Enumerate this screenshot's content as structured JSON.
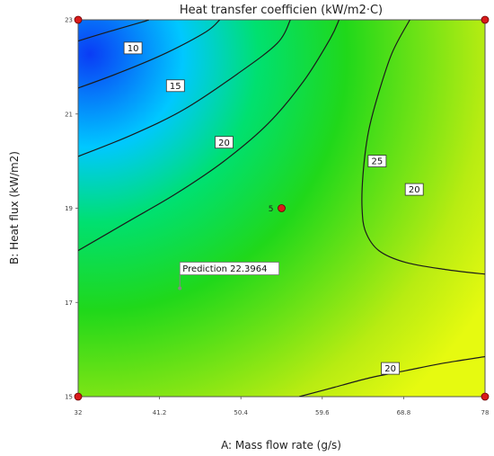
{
  "chart_data": {
    "type": "heatmap",
    "title": "Heat transfer coefficien (kW/m2·C)",
    "xlabel": "A: Mass flow rate (g/s)",
    "ylabel": "B: Heat flux  (kW/m2)",
    "xlim": [
      32,
      78
    ],
    "ylim": [
      15,
      23
    ],
    "x_ticks": [
      "32",
      "41.2",
      "50.4",
      "59.6",
      "68.8",
      "78"
    ],
    "y_ticks": [
      "15",
      "17",
      "19",
      "21",
      "23"
    ],
    "colormap": [
      "#0a3cf5",
      "#00c8ff",
      "#00e070",
      "#20d81a",
      "#b8ec12",
      "#e6fa10"
    ],
    "contours": [
      {
        "label": "10",
        "label_at": [
          38.2,
          22.4
        ],
        "points": [
          [
            32,
            22.55
          ],
          [
            35.5,
            22.75
          ],
          [
            39.2,
            22.95
          ],
          [
            40.0,
            23.0
          ]
        ]
      },
      {
        "label": "15",
        "label_at": [
          43.0,
          21.6
        ],
        "points": [
          [
            32,
            21.55
          ],
          [
            37.0,
            21.9
          ],
          [
            42.0,
            22.3
          ],
          [
            46.5,
            22.75
          ],
          [
            48.0,
            23.0
          ]
        ]
      },
      {
        "label": "20",
        "label_at": [
          48.5,
          20.4
        ],
        "points": [
          [
            32,
            20.1
          ],
          [
            38.0,
            20.55
          ],
          [
            44.0,
            21.1
          ],
          [
            50.0,
            21.85
          ],
          [
            54.5,
            22.5
          ],
          [
            56.0,
            23.0
          ]
        ]
      },
      {
        "label": "20",
        "label_at": [
          70.0,
          19.4
        ],
        "points": [
          [
            32,
            18.1
          ],
          [
            37.5,
            18.7
          ],
          [
            43.0,
            19.3
          ],
          [
            48.5,
            20.0
          ],
          [
            53.5,
            20.8
          ],
          [
            57.5,
            21.7
          ],
          [
            60.5,
            22.6
          ],
          [
            61.5,
            23.0
          ]
        ]
      },
      {
        "label": "25",
        "label_at": [
          65.8,
          20.0
        ],
        "points": [
          [
            69.5,
            23.0
          ],
          [
            67.5,
            22.3
          ],
          [
            65.9,
            21.4
          ],
          [
            64.8,
            20.6
          ],
          [
            64.2,
            19.7
          ],
          [
            64.1,
            19.0
          ],
          [
            64.5,
            18.5
          ],
          [
            66.0,
            18.1
          ],
          [
            69.0,
            17.85
          ],
          [
            73.5,
            17.7
          ],
          [
            78.0,
            17.6
          ]
        ]
      },
      {
        "label": "20",
        "label_at": [
          67.3,
          15.6
        ],
        "points": [
          [
            57.0,
            15.0
          ],
          [
            61.0,
            15.2
          ],
          [
            65.0,
            15.4
          ],
          [
            69.0,
            15.55
          ],
          [
            73.0,
            15.7
          ],
          [
            78.0,
            15.85
          ]
        ]
      }
    ],
    "design_points": [
      {
        "x": 32,
        "y": 15
      },
      {
        "x": 32,
        "y": 23
      },
      {
        "x": 78,
        "y": 15
      },
      {
        "x": 78,
        "y": 23
      },
      {
        "x": 55,
        "y": 19,
        "label": "5"
      }
    ],
    "prediction": {
      "x": 43.5,
      "y": 17.3,
      "label": "Prediction 22.3964"
    }
  }
}
